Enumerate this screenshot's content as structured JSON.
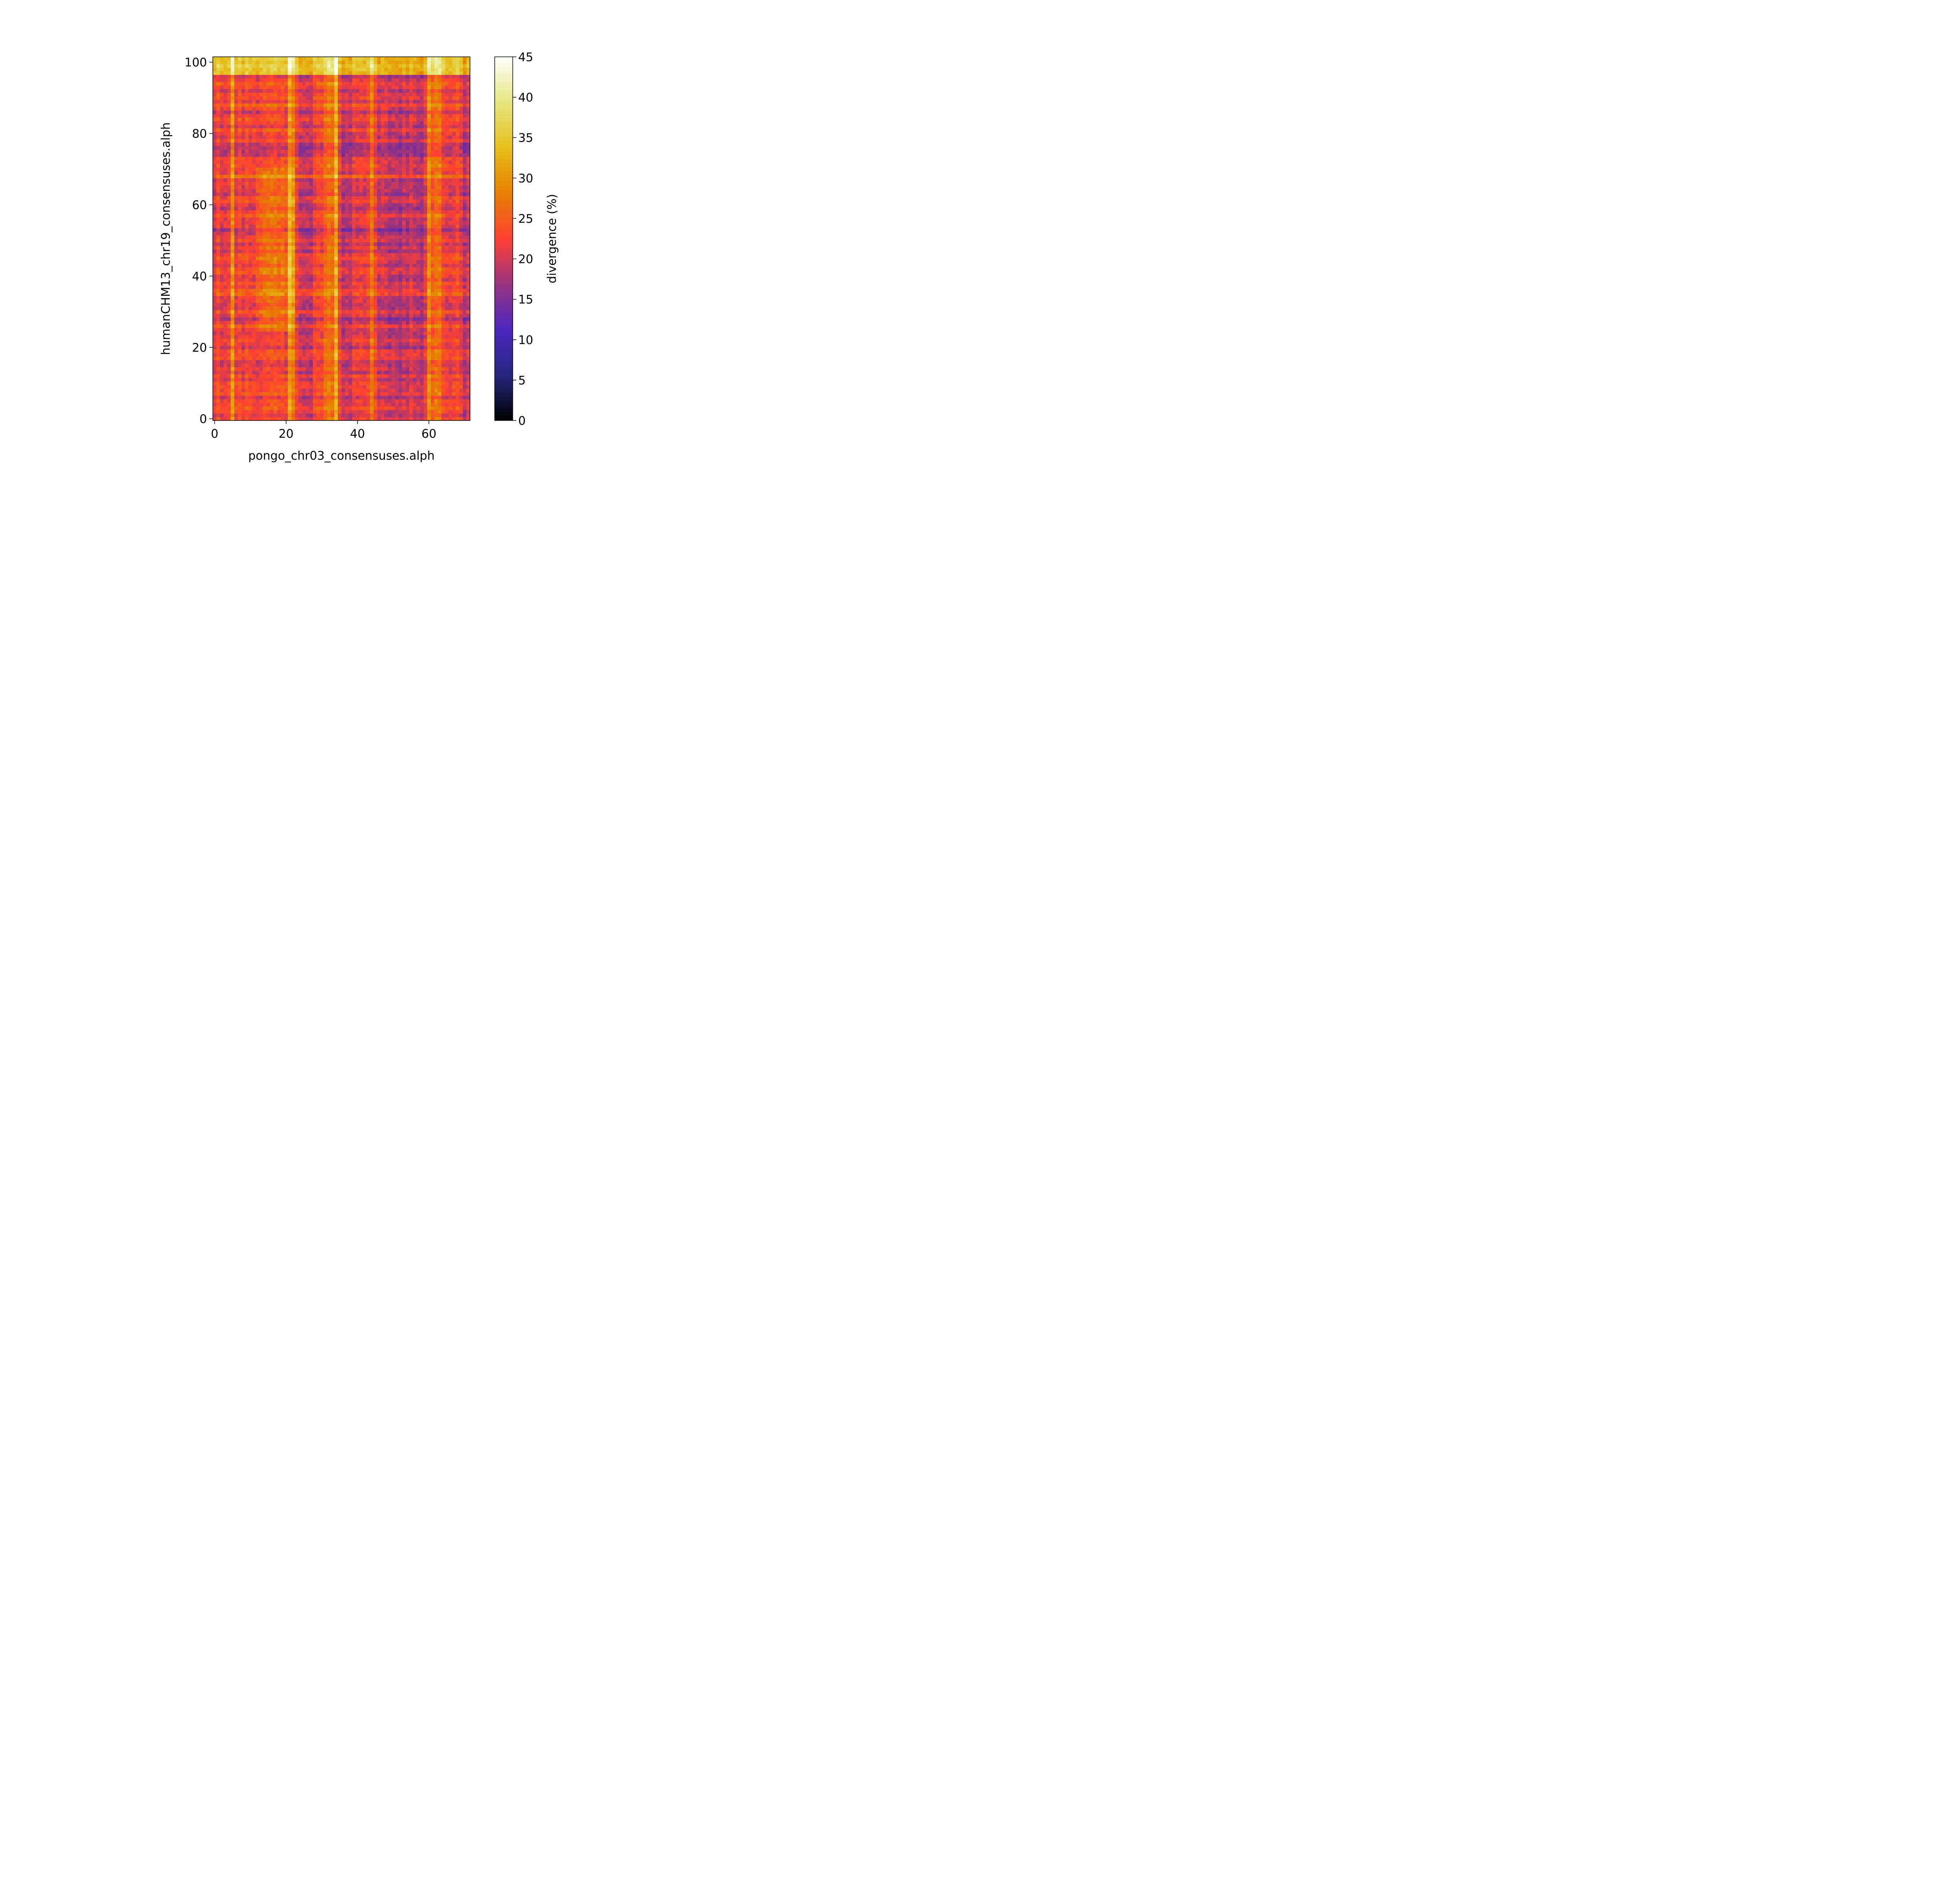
{
  "chart_data": {
    "type": "heatmap",
    "title": "",
    "xlabel": "pongo_chr03_consensuses.alph",
    "ylabel": "humanCHM13_chr19_consensuses.alph",
    "xlim": [
      -0.5,
      71.5
    ],
    "ylim": [
      -0.5,
      101.5
    ],
    "n_cols": 72,
    "n_rows": 102,
    "x_ticks": [
      0,
      20,
      40,
      60
    ],
    "y_ticks": [
      0,
      20,
      40,
      60,
      80,
      100
    ],
    "colorbar": {
      "label": "divergence (%)",
      "range": [
        0,
        45
      ],
      "ticks": [
        0,
        5,
        10,
        15,
        20,
        25,
        30,
        35,
        40,
        45
      ],
      "colormap": "CMRmap",
      "stops": [
        "#000000",
        "#262680",
        "#4d26bf",
        "#993380",
        "#ff4033",
        "#e68000",
        "#e6bf1a",
        "#e6e680",
        "#ffffff"
      ]
    },
    "column_offsets": [
      {
        "cols": [
          5
        ],
        "delta": 7
      },
      {
        "cols": [
          21
        ],
        "delta": 10
      },
      {
        "cols": [
          22
        ],
        "delta": 6
      },
      {
        "cols": [
          31,
          32,
          33
        ],
        "delta": 5
      },
      {
        "cols": [
          34
        ],
        "delta": 10
      },
      {
        "cols": [
          44
        ],
        "delta": 4
      },
      {
        "cols": [
          60
        ],
        "delta": 8
      },
      {
        "cols": [
          61,
          62,
          63
        ],
        "delta": 4
      },
      {
        "cols": [
          24,
          25,
          26,
          27,
          36,
          37,
          38,
          46,
          47,
          48,
          49,
          50,
          51,
          52,
          53,
          54,
          56,
          57,
          58,
          70,
          71
        ],
        "delta": -3
      }
    ],
    "row_offsets": [
      {
        "rows": [
          97,
          98,
          99,
          100,
          101
        ],
        "delta": 12
      },
      {
        "rows": [
          88,
          68,
          61,
          35
        ],
        "delta": 3
      },
      {
        "rows": [
          52,
          53,
          27,
          28,
          75,
          76,
          77
        ],
        "delta": -3
      }
    ],
    "region_offsets": [
      {
        "cols": [
          12,
          22
        ],
        "rows": [
          25,
          70
        ],
        "delta": 4
      }
    ],
    "base_value": 22
  }
}
